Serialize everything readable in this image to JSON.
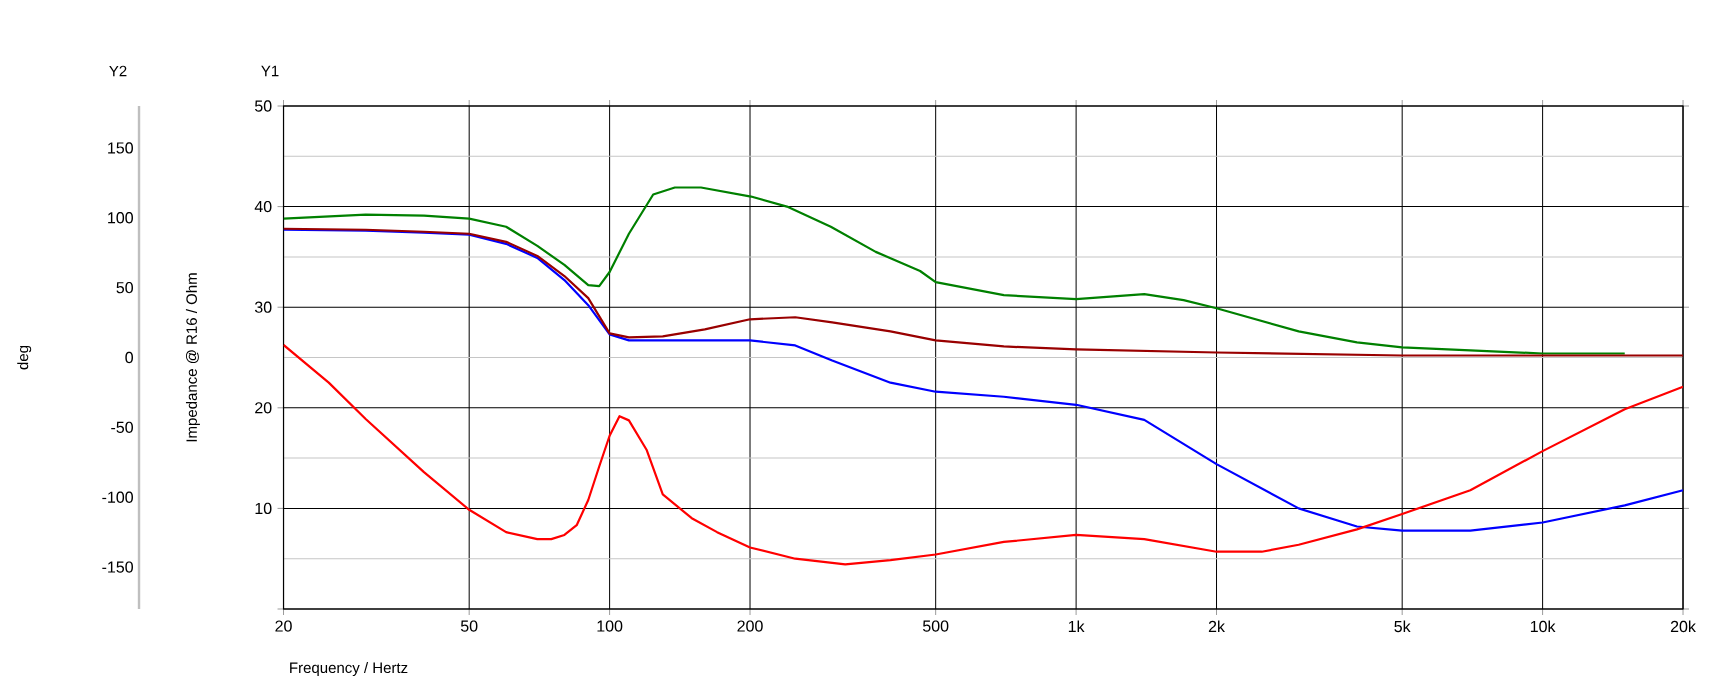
{
  "chart_data": {
    "type": "line",
    "xlabel": "Frequency / Hertz",
    "ylabel": "Impedance @ R16 / Ohm",
    "y2label": "deg",
    "annotations": [
      "Y2",
      "Y1"
    ],
    "log": "x",
    "grid": true,
    "xlim": [
      20,
      20000
    ],
    "xticks": [
      20,
      50,
      100,
      200,
      500,
      {
        "value": 1000,
        "label": "1k"
      },
      {
        "value": 2000,
        "label": "2k"
      },
      {
        "value": 5000,
        "label": "5k"
      },
      {
        "value": 10000,
        "label": "10k"
      },
      {
        "value": 20000,
        "label": "20k"
      }
    ],
    "ylim": [
      0,
      50
    ],
    "yticks": [
      {
        "value": 0,
        "label": null
      },
      10,
      20,
      30,
      40,
      50
    ],
    "y2lim": [
      -180,
      180
    ],
    "y2ticks": [
      -150,
      -100,
      -50,
      0,
      50,
      100,
      150
    ],
    "series": [
      {
        "color": "#008000",
        "x": [
          20,
          30,
          40,
          50,
          60,
          70,
          80,
          90,
          95,
          100,
          110,
          124,
          138,
          157,
          201,
          240,
          298,
          372,
          463,
          500,
          700,
          1000,
          1400,
          1700,
          2000,
          3000,
          4000,
          5000,
          7000,
          10000,
          15000
        ],
        "values": [
          38.8,
          39.2,
          39.1,
          38.8,
          38.0,
          36.1,
          34.2,
          32.2,
          32.1,
          33.5,
          37.3,
          41.2,
          41.9,
          41.9,
          41.0,
          40.0,
          38.0,
          35.5,
          33.6,
          32.5,
          31.2,
          30.8,
          31.3,
          30.7,
          29.9,
          27.6,
          26.5,
          26.0,
          25.7,
          25.4,
          25.4
        ]
      },
      {
        "color": "#0000ff",
        "x": [
          20,
          30,
          40,
          50,
          60,
          70,
          80,
          90,
          100,
          110,
          150,
          200,
          250,
          300,
          400,
          500,
          700,
          1000,
          1400,
          2000,
          3000,
          4000,
          5000,
          7000,
          10000,
          15000,
          20000
        ],
        "values": [
          37.7,
          37.6,
          37.4,
          37.2,
          36.3,
          34.9,
          32.7,
          30.2,
          27.3,
          26.7,
          26.7,
          26.7,
          26.2,
          24.7,
          22.5,
          21.6,
          21.1,
          20.3,
          18.8,
          14.4,
          10.0,
          8.2,
          7.8,
          7.8,
          8.6,
          10.3,
          11.8
        ]
      },
      {
        "color": "#990000",
        "x": [
          20,
          30,
          40,
          50,
          60,
          70,
          80,
          90,
          100,
          110,
          130,
          160,
          200,
          250,
          300,
          400,
          500,
          700,
          1000,
          2000,
          5000,
          20000
        ],
        "values": [
          37.8,
          37.7,
          37.5,
          37.3,
          36.5,
          35.1,
          33.1,
          30.9,
          27.4,
          27.0,
          27.1,
          27.8,
          28.8,
          29.0,
          28.5,
          27.6,
          26.7,
          26.1,
          25.8,
          25.5,
          25.2,
          25.2
        ]
      },
      {
        "color": "#ff0000",
        "axis": "y2",
        "x": [
          20,
          25,
          30,
          40,
          50,
          60,
          70,
          75,
          80,
          85,
          90,
          95,
          100,
          105,
          110,
          120,
          130,
          150,
          170,
          200,
          250,
          320,
          400,
          500,
          700,
          1000,
          1400,
          2000,
          2500,
          3000,
          4000,
          5000,
          7000,
          10000,
          15000,
          20000
        ],
        "values": [
          9,
          -18,
          -44,
          -82,
          -109,
          -125,
          -130,
          -130,
          -127,
          -120,
          -102,
          -78,
          -56,
          -42,
          -45,
          -66,
          -98,
          -115,
          -125,
          -136,
          -144,
          -148,
          -145,
          -141,
          -132,
          -127,
          -130,
          -139,
          -139,
          -134,
          -123,
          -112,
          -95,
          -67,
          -37,
          -21
        ]
      }
    ]
  }
}
